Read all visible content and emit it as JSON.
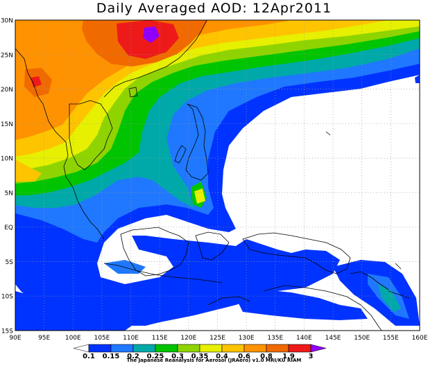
{
  "title": "Daily Averaged AOD: 12Apr2011",
  "credit": "The Japanese Reanalysis for Aerosol (JRAero) v1.0 MRI/KU RIAM",
  "map": {
    "lon_range": [
      90,
      160
    ],
    "lat_range": [
      -15,
      30
    ],
    "lat_labels": [
      "30N",
      "25N",
      "20N",
      "15N",
      "10N",
      "5N",
      "EQ",
      "5S",
      "10S",
      "15S"
    ],
    "lon_labels": [
      "90E",
      "95E",
      "100E",
      "105E",
      "110E",
      "115E",
      "120E",
      "125E",
      "130E",
      "135E",
      "140E",
      "145E",
      "150E",
      "155E",
      "160E"
    ],
    "gridlines": "dotted"
  },
  "colorbar": {
    "labels": [
      "0.1",
      "0.15",
      "0.2",
      "0.25",
      "0.3",
      "0.35",
      "0.4",
      "0.6",
      "0.8",
      "1.9",
      "3"
    ],
    "colors": [
      "#0033ff",
      "#1f78ff",
      "#00a9a9",
      "#00c400",
      "#8fd400",
      "#e6f000",
      "#ffc400",
      "#ff9200",
      "#f06a00",
      "#ee1a1a",
      "#9000ff"
    ]
  }
}
